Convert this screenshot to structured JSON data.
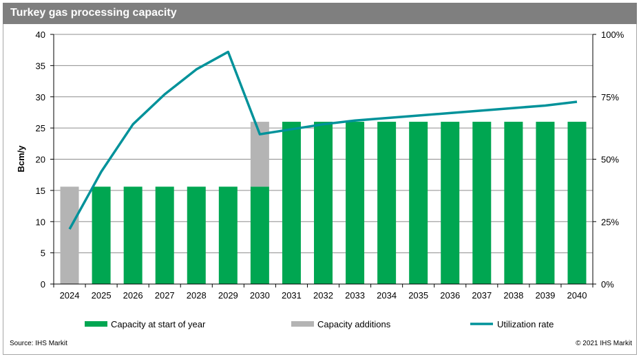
{
  "title": "Turkey gas processing capacity",
  "source": "Source: IHS Markit",
  "copyright": "© 2021 IHS Markit",
  "colors": {
    "capacity": "#00a651",
    "additions": "#b4b4b4",
    "utilization": "#00929a",
    "title_bar": "#7f7f7f"
  },
  "chart_data": {
    "type": "bar",
    "categories": [
      "2024",
      "2025",
      "2026",
      "2027",
      "2028",
      "2029",
      "2030",
      "2031",
      "2032",
      "2033",
      "2034",
      "2035",
      "2036",
      "2037",
      "2038",
      "2039",
      "2040"
    ],
    "series": [
      {
        "name": "Capacity at start of year",
        "type": "bar",
        "axis": "left",
        "values": [
          0,
          15.6,
          15.6,
          15.6,
          15.6,
          15.6,
          15.6,
          26,
          26,
          26,
          26,
          26,
          26,
          26,
          26,
          26,
          26
        ]
      },
      {
        "name": "Capacity additions",
        "type": "bar-stacked",
        "axis": "left",
        "values": [
          15.6,
          0,
          0,
          0,
          0,
          0,
          10.4,
          0,
          0,
          0,
          0,
          0,
          0,
          0,
          0,
          0,
          0
        ]
      },
      {
        "name": "Utilization rate",
        "type": "line",
        "axis": "right",
        "values": [
          0.22,
          0.45,
          0.64,
          0.76,
          0.86,
          0.93,
          0.6,
          0.62,
          0.64,
          0.655,
          0.665,
          0.675,
          0.685,
          0.695,
          0.705,
          0.715,
          0.73
        ]
      }
    ],
    "ylabel": "Bcm/y",
    "ylim": [
      0,
      40
    ],
    "yticks": [
      "0",
      "5",
      "10",
      "15",
      "20",
      "25",
      "30",
      "35",
      "40"
    ],
    "y2lim": [
      0,
      1
    ],
    "y2ticks": [
      "0%",
      "25%",
      "50%",
      "75%",
      "100%"
    ],
    "grid": true,
    "legend_position": "bottom"
  }
}
